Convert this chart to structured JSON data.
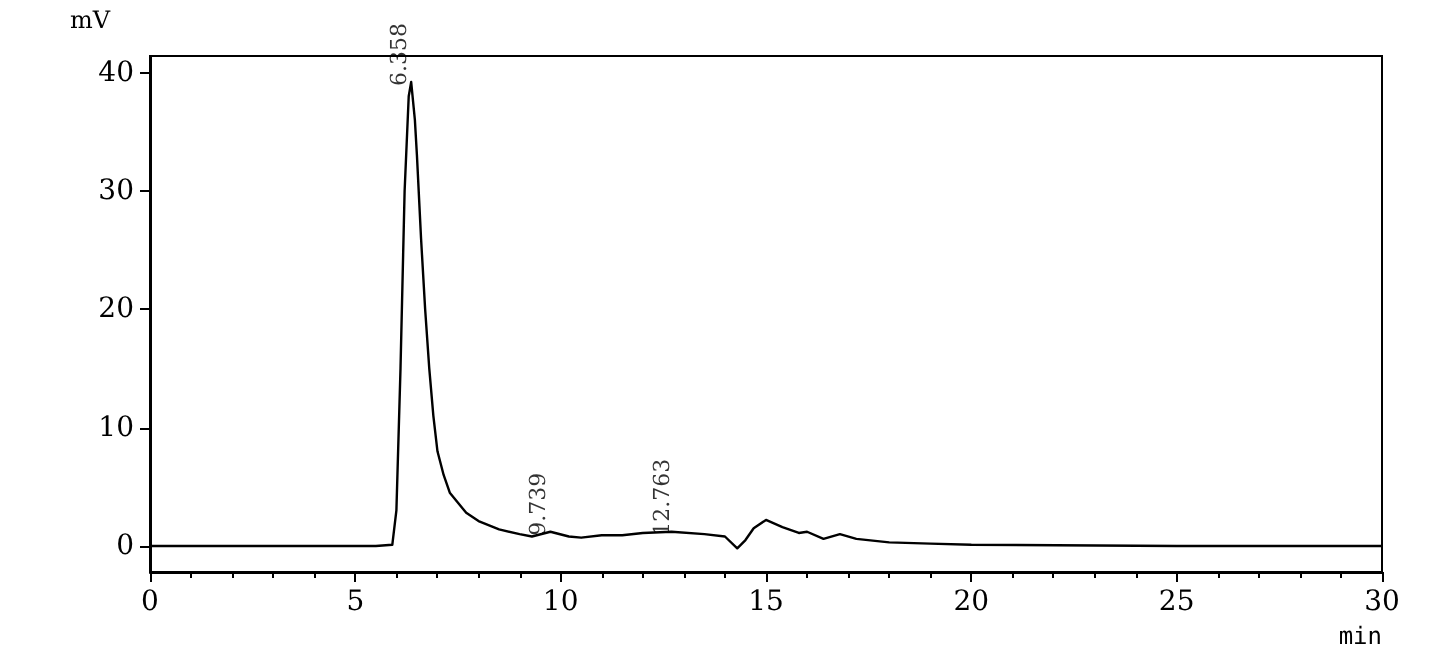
{
  "chart_data": {
    "type": "line",
    "xlabel": "min",
    "ylabel": "mV",
    "xlim": [
      0,
      30
    ],
    "xticks": [
      0,
      5,
      10,
      15,
      20,
      25,
      30
    ],
    "ylim": [
      -2.2,
      41.4
    ],
    "yticks": [
      0,
      10,
      20,
      30,
      40
    ],
    "grid": false,
    "marker": "none",
    "line_style": "solid",
    "series": [
      {
        "color": "#000000",
        "x": [
          0,
          2,
          4,
          5.5,
          5.9,
          6.0,
          6.1,
          6.2,
          6.3,
          6.36,
          6.45,
          6.5,
          6.6,
          6.7,
          6.8,
          6.9,
          7.0,
          7.15,
          7.3,
          7.7,
          8.0,
          8.5,
          9.0,
          9.3,
          9.75,
          10.2,
          10.5,
          11.0,
          11.5,
          12.0,
          12.7,
          13.5,
          14.0,
          14.3,
          14.5,
          14.7,
          15.0,
          15.4,
          15.8,
          16.0,
          16.4,
          16.8,
          17.2,
          18,
          19,
          20,
          25,
          30
        ],
        "values": [
          0,
          0,
          0,
          0,
          0.1,
          3,
          15,
          30,
          38,
          39.2,
          36,
          33,
          26,
          20,
          15,
          11,
          8,
          6,
          4.5,
          2.8,
          2.1,
          1.4,
          1.0,
          0.8,
          1.2,
          0.8,
          0.7,
          0.9,
          0.9,
          1.1,
          1.2,
          1.0,
          0.8,
          -0.2,
          0.5,
          1.5,
          2.2,
          1.6,
          1.1,
          1.2,
          0.6,
          1.0,
          0.6,
          0.3,
          0.2,
          0.1,
          0,
          0
        ]
      }
    ],
    "annotations": [
      {
        "text": "6.358",
        "x": 6.358,
        "y": 39.2
      },
      {
        "text": "9.739",
        "x": 9.739,
        "y": 1.2
      },
      {
        "text": "12.763",
        "x": 12.763,
        "y": 1.2
      }
    ]
  }
}
